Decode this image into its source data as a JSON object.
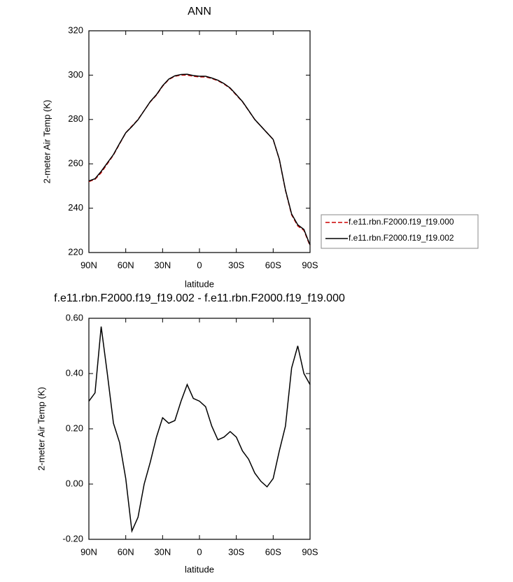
{
  "chart_data": [
    {
      "type": "line",
      "title": "ANN",
      "xlabel": "latitude",
      "ylabel": "2-meter Air Temp (K)",
      "x": [
        90,
        85,
        80,
        75,
        70,
        65,
        60,
        55,
        50,
        45,
        40,
        35,
        30,
        25,
        20,
        15,
        10,
        5,
        0,
        -5,
        -10,
        -15,
        -20,
        -25,
        -30,
        -35,
        -40,
        -45,
        -50,
        -55,
        -60,
        -65,
        -70,
        -75,
        -80,
        -85,
        -90
      ],
      "series": [
        {
          "name": "f.e11.rbn.F2000.f19_f19.000",
          "color": "#cc0000",
          "dash": true,
          "values": [
            252,
            253,
            256,
            260,
            264,
            269,
            274,
            277,
            280,
            284,
            288,
            291,
            295,
            298,
            299.5,
            300,
            300,
            299.5,
            299.2,
            299.2,
            298.5,
            297.5,
            296,
            294,
            291,
            288,
            284,
            280,
            277,
            274,
            271,
            262,
            248,
            237,
            232,
            230,
            223
          ]
        },
        {
          "name": "f.e11.rbn.F2000.f19_f19.002",
          "color": "#000000",
          "dash": false,
          "values": [
            252.3,
            253.3,
            256.6,
            260.4,
            264.2,
            269.2,
            274.0,
            276.8,
            279.9,
            284.0,
            288.1,
            291.2,
            295.2,
            298.2,
            299.7,
            300.3,
            300.4,
            299.8,
            299.5,
            299.5,
            298.7,
            297.7,
            296.2,
            294.2,
            291.2,
            288.1,
            284.1,
            280.0,
            277.0,
            274.0,
            271.0,
            262.1,
            248.2,
            237.4,
            232.5,
            230.4,
            223.4
          ]
        }
      ],
      "xlim": [
        90,
        -90
      ],
      "xticks": [
        {
          "value": 90,
          "label": "90N"
        },
        {
          "value": 60,
          "label": "60N"
        },
        {
          "value": 30,
          "label": "30N"
        },
        0,
        {
          "value": -30,
          "label": "30S"
        },
        {
          "value": -60,
          "label": "60S"
        },
        {
          "value": -90,
          "label": "90S"
        }
      ],
      "ylim": [
        220,
        320
      ],
      "yticks": [
        220,
        240,
        260,
        280,
        300,
        320
      ]
    },
    {
      "type": "line",
      "title": "f.e11.rbn.F2000.f19_f19.002 - f.e11.rbn.F2000.f19_f19.000",
      "xlabel": "latitude",
      "ylabel": "2-meter Air Temp (K)",
      "x": [
        90,
        85,
        80,
        75,
        70,
        65,
        60,
        55,
        50,
        45,
        40,
        35,
        30,
        25,
        20,
        15,
        10,
        5,
        0,
        -5,
        -10,
        -15,
        -20,
        -25,
        -30,
        -35,
        -40,
        -45,
        -50,
        -55,
        -60,
        -65,
        -70,
        -75,
        -80,
        -85,
        -90
      ],
      "series": [
        {
          "color": "#000000",
          "dash": false,
          "values": [
            0.3,
            0.33,
            0.57,
            0.4,
            0.22,
            0.15,
            0.02,
            -0.17,
            -0.12,
            0.0,
            0.08,
            0.17,
            0.24,
            0.22,
            0.23,
            0.3,
            0.36,
            0.31,
            0.3,
            0.28,
            0.21,
            0.16,
            0.17,
            0.19,
            0.17,
            0.12,
            0.09,
            0.04,
            0.01,
            -0.01,
            0.02,
            0.12,
            0.21,
            0.42,
            0.5,
            0.4,
            0.36
          ]
        }
      ],
      "xlim": [
        90,
        -90
      ],
      "xticks": [
        {
          "value": 90,
          "label": "90N"
        },
        {
          "value": 60,
          "label": "60N"
        },
        {
          "value": 30,
          "label": "30N"
        },
        0,
        {
          "value": -30,
          "label": "30S"
        },
        {
          "value": -60,
          "label": "60S"
        },
        {
          "value": -90,
          "label": "90S"
        }
      ],
      "ylim": [
        -0.2,
        0.6
      ],
      "yticks": [
        {
          "value": -0.2,
          "label": "-0.20"
        },
        {
          "value": 0,
          "label": "0.00"
        },
        {
          "value": 0.2,
          "label": "0.20"
        },
        {
          "value": 0.4,
          "label": "0.40"
        },
        {
          "value": 0.6,
          "label": "0.60"
        }
      ]
    }
  ]
}
